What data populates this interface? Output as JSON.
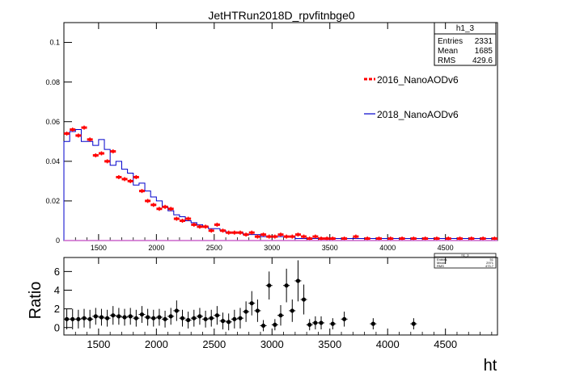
{
  "colors": {
    "series_2016": "#ff0000",
    "series_2018": "#0000cc",
    "ratio_points": "#000000"
  },
  "chart_data": [
    {
      "type": "line",
      "title": "JetHTRun2018D_rpvfitnbge0",
      "xlabel": "",
      "ylabel": "",
      "xlim": [
        1200,
        4950
      ],
      "ylim": [
        0,
        0.11
      ],
      "yticks": [
        "0",
        "0.02",
        "0.04",
        "0.06",
        "0.08",
        "0.1"
      ],
      "yticks_values": [
        0,
        0.02,
        0.04,
        0.06,
        0.08,
        0.1
      ],
      "xticks": [
        "1500",
        "2000",
        "2500",
        "3000",
        "3500",
        "4000",
        "4500"
      ],
      "xticks_values": [
        1500,
        2000,
        2500,
        3000,
        3500,
        4000,
        4500
      ],
      "grid": false,
      "legend_placement": "right",
      "stats_box": {
        "title": "h1_3",
        "rows": [
          {
            "label": "Entries",
            "value": "2331"
          },
          {
            "label": "Mean",
            "value": "1685"
          },
          {
            "label": "RMS",
            "value": "429.6"
          }
        ]
      },
      "bin_width": 50,
      "series": [
        {
          "name": "2016_NanoAODv6",
          "style": "dashed-marker",
          "x": [
            1200,
            1250,
            1300,
            1350,
            1400,
            1450,
            1500,
            1550,
            1600,
            1650,
            1700,
            1750,
            1800,
            1850,
            1900,
            1950,
            2000,
            2050,
            2100,
            2150,
            2200,
            2250,
            2300,
            2350,
            2400,
            2450,
            2500,
            2550,
            2600,
            2650,
            2700,
            2750,
            2800,
            2850,
            2900,
            2950,
            3000,
            3050,
            3100,
            3150,
            3200,
            3250,
            3300,
            3350,
            3400,
            3450,
            3500,
            3600,
            3700,
            3800,
            3900,
            4000,
            4100,
            4200,
            4300,
            4400,
            4500,
            4600,
            4700,
            4800,
            4900
          ],
          "values": [
            0.054,
            0.056,
            0.053,
            0.057,
            0.051,
            0.043,
            0.044,
            0.04,
            0.045,
            0.032,
            0.031,
            0.03,
            0.032,
            0.025,
            0.02,
            0.018,
            0.016,
            0.017,
            0.016,
            0.011,
            0.01,
            0.011,
            0.008,
            0.007,
            0.007,
            0.005,
            0.008,
            0.005,
            0.004,
            0.004,
            0.004,
            0.003,
            0.004,
            0.002,
            0.003,
            0.002,
            0.002,
            0.003,
            0.002,
            0.002,
            0.003,
            0.002,
            0.001,
            0.002,
            0.001,
            0.001,
            0.001,
            0.001,
            0.002,
            0.001,
            0.001,
            0.001,
            0.001,
            0.001,
            0.001,
            0.001,
            0.001,
            0.001,
            0.001,
            0.001,
            0.001
          ]
        },
        {
          "name": "2018_NanoAODv6",
          "style": "step",
          "x": [
            1200,
            1250,
            1300,
            1350,
            1400,
            1450,
            1500,
            1550,
            1600,
            1650,
            1700,
            1750,
            1800,
            1850,
            1900,
            1950,
            2000,
            2050,
            2100,
            2150,
            2200,
            2250,
            2300,
            2350,
            2400,
            2450,
            2500,
            2550,
            2600,
            2650,
            2700,
            2750,
            2800,
            2850,
            2900,
            2950,
            3000,
            3050,
            3100,
            3150,
            3200,
            3250,
            3300,
            3350,
            3400,
            3450,
            3500,
            3600,
            3700,
            3800,
            3900,
            4000,
            4100,
            4200,
            4300,
            4400,
            4500,
            4600,
            4700,
            4800,
            4900
          ],
          "values": [
            0.05,
            0.055,
            0.056,
            0.05,
            0.05,
            0.048,
            0.051,
            0.046,
            0.038,
            0.04,
            0.036,
            0.034,
            0.028,
            0.029,
            0.025,
            0.022,
            0.02,
            0.017,
            0.015,
            0.013,
            0.012,
            0.01,
            0.009,
            0.008,
            0.007,
            0.006,
            0.006,
            0.005,
            0.004,
            0.004,
            0.004,
            0.003,
            0.003,
            0.003,
            0.002,
            0.002,
            0.002,
            0.002,
            0.002,
            0.002,
            0.001,
            0.001,
            0.001,
            0.001,
            0.001,
            0.001,
            0.001,
            0.001,
            0.001,
            0.001,
            0.001,
            0.001,
            0.001,
            0.001,
            0.001,
            0.001,
            0.001,
            0.001,
            0.001,
            0.001,
            0.001
          ]
        }
      ]
    },
    {
      "type": "scatter",
      "title": "",
      "xlabel": "ht",
      "ylabel": "Ratio",
      "xlim": [
        1200,
        4950
      ],
      "ylim": [
        -0.8,
        7.5
      ],
      "yticks": [
        "0",
        "2",
        "4",
        "6"
      ],
      "yticks_values": [
        0,
        2,
        4,
        6
      ],
      "xticks": [
        "1500",
        "2000",
        "2500",
        "3000",
        "3500",
        "4000",
        "4500"
      ],
      "xticks_values": [
        1500,
        2000,
        2500,
        3000,
        3500,
        4000,
        4500
      ],
      "grid": false,
      "stats_box": {
        "title": "h1_3",
        "rows": [
          {
            "label": "Entries",
            "value": "51"
          },
          {
            "label": "Mean",
            "value": "2971"
          },
          {
            "label": "RMS",
            "value": "473.7"
          }
        ]
      },
      "series": [
        {
          "name": "",
          "x": [
            1225,
            1275,
            1325,
            1375,
            1425,
            1475,
            1525,
            1575,
            1625,
            1675,
            1725,
            1775,
            1825,
            1875,
            1925,
            1975,
            2025,
            2075,
            2125,
            2175,
            2225,
            2275,
            2325,
            2375,
            2425,
            2475,
            2525,
            2575,
            2625,
            2675,
            2725,
            2775,
            2825,
            2875,
            2925,
            2975,
            3025,
            3075,
            3125,
            3175,
            3225,
            3275,
            3325,
            3375,
            3425,
            3525,
            3625,
            3875,
            4225
          ],
          "values": [
            0.9,
            0.9,
            0.9,
            1.0,
            0.9,
            1.2,
            1.1,
            1.0,
            1.3,
            1.2,
            1.1,
            1.2,
            1.0,
            1.4,
            1.1,
            1.0,
            1.1,
            0.9,
            1.2,
            1.8,
            1.0,
            0.8,
            1.0,
            1.2,
            0.9,
            1.0,
            1.3,
            0.7,
            0.6,
            0.9,
            1.0,
            1.7,
            2.6,
            1.8,
            0.2,
            4.5,
            0.3,
            1.3,
            4.5,
            1.8,
            5.0,
            3.0,
            0.3,
            0.5,
            0.5,
            0.4,
            0.9,
            0.4,
            0.4
          ],
          "errors": [
            1.1,
            1.1,
            1.0,
            1.0,
            1.0,
            0.9,
            0.9,
            0.9,
            1.0,
            0.9,
            0.9,
            0.9,
            0.9,
            0.9,
            0.9,
            0.9,
            0.9,
            0.9,
            0.9,
            1.1,
            0.9,
            0.9,
            0.9,
            0.9,
            0.9,
            0.9,
            1.0,
            0.9,
            0.9,
            1.0,
            1.1,
            1.1,
            1.3,
            1.2,
            0.6,
            1.5,
            0.6,
            1.1,
            1.8,
            1.2,
            2.2,
            1.6,
            0.6,
            0.7,
            0.7,
            0.6,
            0.8,
            0.6,
            0.6
          ]
        }
      ]
    }
  ]
}
